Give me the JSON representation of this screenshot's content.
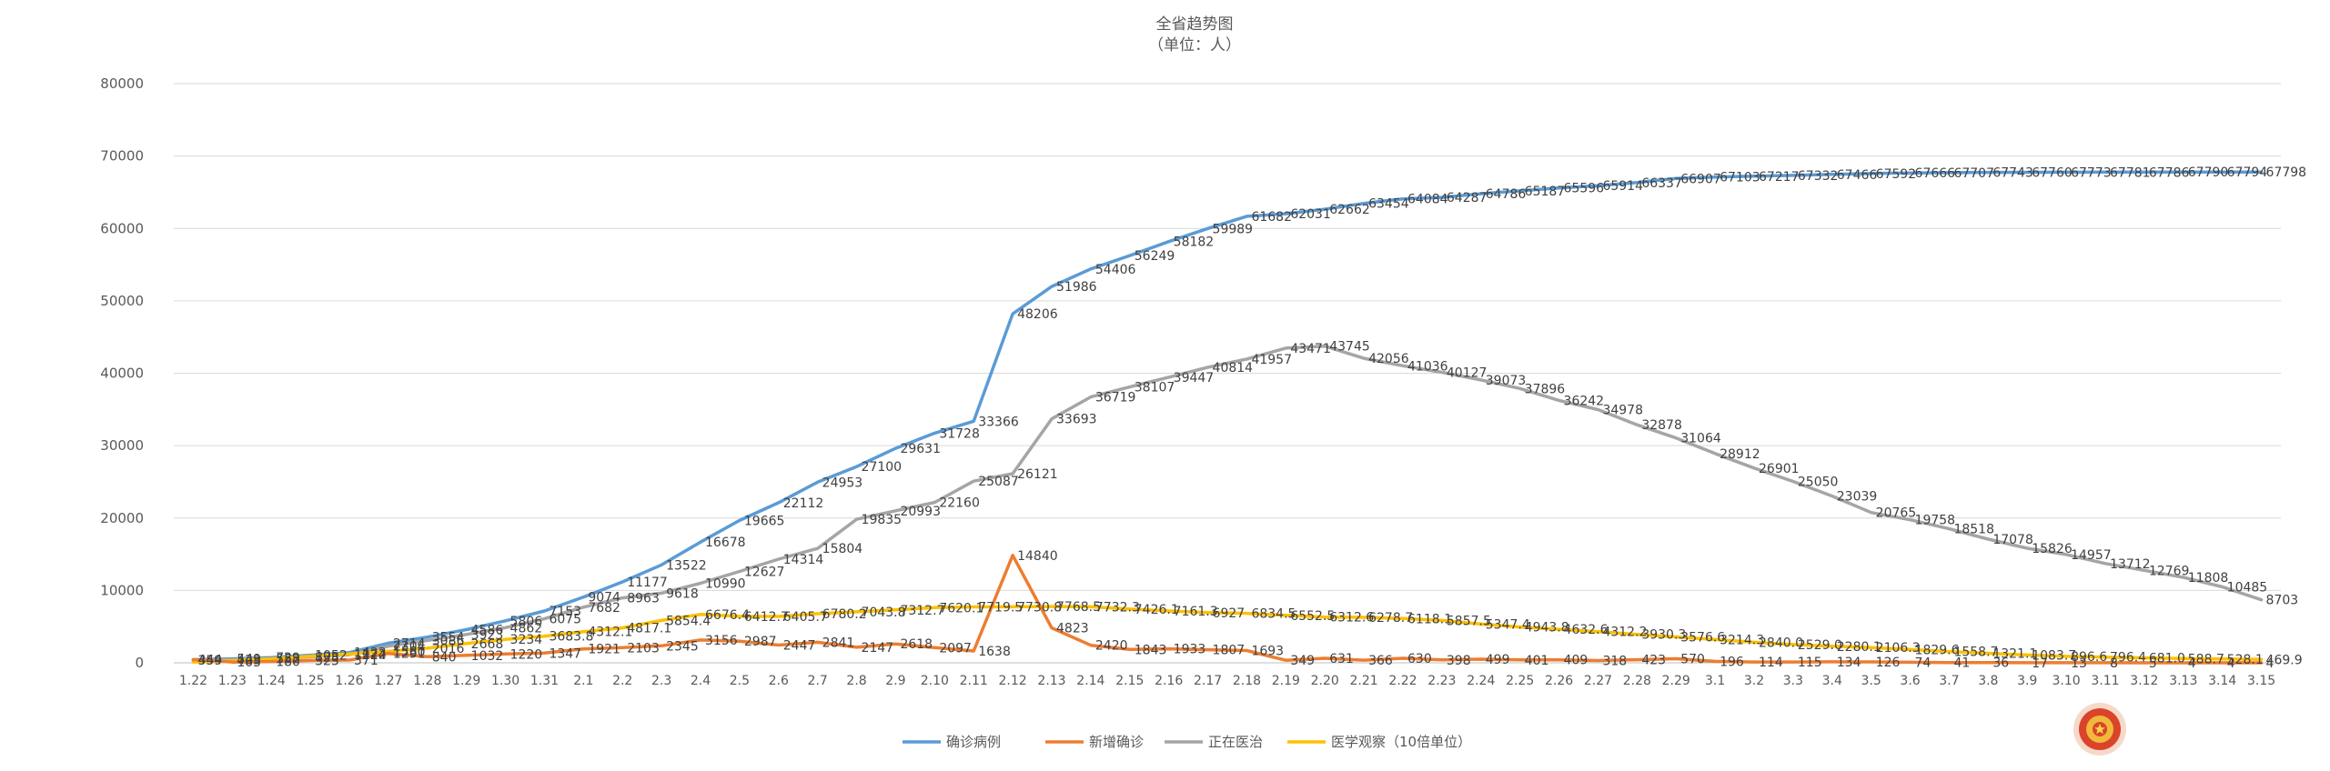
{
  "chart_data": {
    "type": "line",
    "title": "全省趋势图",
    "subtitle": "（单位：人）",
    "xlabel": "",
    "ylabel": "",
    "ylim": [
      0,
      80000
    ],
    "y_ticks": [
      0,
      10000,
      20000,
      30000,
      40000,
      50000,
      60000,
      70000,
      80000
    ],
    "grid": true,
    "legend_position": "bottom",
    "categories": [
      "1.22",
      "1.23",
      "1.24",
      "1.25",
      "1.26",
      "1.27",
      "1.28",
      "1.29",
      "1.30",
      "1.31",
      "2.1",
      "2.2",
      "2.3",
      "2.4",
      "2.5",
      "2.6",
      "2.7",
      "2.8",
      "2.9",
      "2.10",
      "2.11",
      "2.12",
      "2.13",
      "2.14",
      "2.15",
      "2.16",
      "2.17",
      "2.18",
      "2.19",
      "2.20",
      "2.21",
      "2.22",
      "2.23",
      "2.24",
      "2.25",
      "2.26",
      "2.27",
      "2.28",
      "2.29",
      "3.1",
      "3.2",
      "3.3",
      "3.4",
      "3.5",
      "3.6",
      "3.7",
      "3.8",
      "3.9",
      "3.10",
      "3.11",
      "3.12",
      "3.13",
      "3.14",
      "3.15"
    ],
    "series": [
      {
        "name": "确诊病例",
        "color": "#5b9bd5",
        "values": [
          444,
          549,
          729,
          1052,
          1423,
          2714,
          3554,
          4586,
          5806,
          7153,
          9074,
          11177,
          13522,
          16678,
          19665,
          22112,
          24953,
          27100,
          29631,
          31728,
          33366,
          48206,
          51986,
          54406,
          56249,
          58182,
          59989,
          61682,
          62031,
          62662,
          63454,
          64084,
          64287,
          64786,
          65187,
          65596,
          65914,
          66337,
          66907,
          67103,
          67217,
          67332,
          67466,
          67592,
          67666,
          67707,
          67743,
          67760,
          67773,
          67781,
          67786,
          67790,
          67794,
          67798
        ]
      },
      {
        "name": "新增确诊",
        "color": "#ed7d31",
        "values": [
          444,
          105,
          180,
          323,
          371,
          1291,
          840,
          1032,
          1220,
          1347,
          1921,
          2103,
          2345,
          3156,
          2987,
          2447,
          2841,
          2147,
          2618,
          2097,
          1638,
          14840,
          4823,
          2420,
          1843,
          1933,
          1807,
          1693,
          349,
          631,
          366,
          630,
          398,
          499,
          401,
          409,
          318,
          423,
          570,
          196,
          114,
          115,
          134,
          126,
          74,
          41,
          36,
          17,
          13,
          8,
          5,
          4,
          4,
          4
        ]
      },
      {
        "name": "正在医治",
        "color": "#a5a5a5",
        "values": [
          359,
          423,
          552,
          828,
          1124,
          2304,
          3086,
          3923,
          4862,
          6075,
          7682,
          8963,
          9618,
          10990,
          12627,
          14314,
          15804,
          19835,
          20993,
          22160,
          25087,
          26121,
          33693,
          36719,
          38107,
          39447,
          40814,
          41957,
          43471,
          43745,
          42056,
          41036,
          40127,
          39073,
          37896,
          36242,
          34978,
          32878,
          31064,
          28912,
          26901,
          25050,
          23039,
          20765,
          19758,
          18518,
          17078,
          15826,
          14957,
          13712,
          12769,
          11808,
          10485,
          8703
        ]
      },
      {
        "name": "医学观察（10倍单位）",
        "color": "#ffc000",
        "values": [
          100,
          300,
          550,
          900,
          1222,
          1580,
          2016,
          2668,
          3234,
          3683.8,
          4312.1,
          4817.1,
          5854.4,
          6676.4,
          6412.7,
          6405.7,
          6780.2,
          7043.8,
          7312.7,
          7620.1,
          7719.5,
          7730.8,
          7768.5,
          7732.3,
          7426.1,
          7161.3,
          6927,
          6834.5,
          6552.5,
          6312.6,
          6278.7,
          6118.1,
          5857.5,
          5347.4,
          4943.8,
          4632.6,
          4312.2,
          3930.3,
          3576.6,
          3214.3,
          2840,
          2529,
          2280.1,
          2106.3,
          1829.6,
          1558.7,
          1321.1,
          1083.7,
          896.6,
          796.4,
          681,
          588.7,
          528.1,
          469.9
        ]
      }
    ],
    "data_labels": {
      "s0": [
        "444",
        "549",
        "729",
        "1052",
        "1423",
        "2714",
        "3554",
        "4586",
        "5806",
        "7153",
        "9074",
        "11177",
        "13522",
        "16678",
        "19665",
        "22112",
        "24953",
        "27100",
        "29631",
        "31728",
        "33366",
        "48206",
        "51986",
        "54406",
        "56249",
        "58182",
        "59989",
        "61682",
        "62031",
        "62662",
        "63454",
        "64084",
        "64287",
        "64786",
        "65187",
        "65596",
        "65914",
        "66337",
        "66907",
        "67103",
        "67217",
        "67332",
        "67466",
        "67592",
        "67666",
        "67707",
        "67743",
        "67760",
        "67773",
        "67781",
        "67786",
        "67790",
        "67794",
        "67798"
      ],
      "s1": [
        "444",
        "105",
        "180",
        "323",
        "371",
        "1291",
        "840",
        "1032",
        "1220",
        "1347",
        "1921",
        "2103",
        "2345",
        "3156",
        "2987",
        "2447",
        "2841",
        "2147",
        "2618",
        "2097",
        "1638",
        "14840",
        "4823",
        "2420",
        "1843",
        "1933",
        "1807",
        "1693",
        "349",
        "631",
        "366",
        "630",
        "398",
        "499",
        "401",
        "409",
        "318",
        "423",
        "570",
        "196",
        "114",
        "115",
        "134",
        "126",
        "74",
        "41",
        "36",
        "17",
        "13",
        "8",
        "5",
        "4",
        "4",
        "4"
      ],
      "s2": [
        "359",
        "423",
        "552",
        "828",
        "1124",
        "2304",
        "3086",
        "3923",
        "4862",
        "6075",
        "7682",
        "8963",
        "9618",
        "10990",
        "12627",
        "14314",
        "15804",
        "19835",
        "20993",
        "22160",
        "25087",
        "26121",
        "33693",
        "36719",
        "38107",
        "39447",
        "40814",
        "41957",
        "43471",
        "43745",
        "42056",
        "41036",
        "40127",
        "39073",
        "37896",
        "36242",
        "34978",
        "32878",
        "31064",
        "28912",
        "26901",
        "25050",
        "23039",
        "20765",
        "19758",
        "18518",
        "17078",
        "15826",
        "14957",
        "13712",
        "12769",
        "11808",
        "10485",
        "8703"
      ],
      "s3": [
        "",
        "",
        "",
        "",
        "1222",
        "1580",
        "2016",
        "2668",
        "3234",
        "3683.8",
        "4312.1",
        "4817.1",
        "5854.4",
        "6676.4",
        "6412.7",
        "6405.7",
        "6780.2",
        "7043.8",
        "7312.7",
        "7620.1",
        "7719.5",
        "7730.8",
        "7768.5",
        "7732.3",
        "7426.1",
        "7161.3",
        "6927",
        "6834.5",
        "6552.5",
        "6312.6",
        "6278.7",
        "6118.1",
        "5857.5",
        "5347.4",
        "4943.8",
        "4632.6",
        "4312.2",
        "3930.3",
        "3576.6",
        "3214.3",
        "2840.0",
        "2529.0",
        "2280.1",
        "2106.3",
        "1829.6",
        "1558.7",
        "1321.1",
        "1083.7",
        "896.6",
        "796.4",
        "681.0",
        "588.7",
        "528.1",
        "469.9"
      ]
    }
  }
}
